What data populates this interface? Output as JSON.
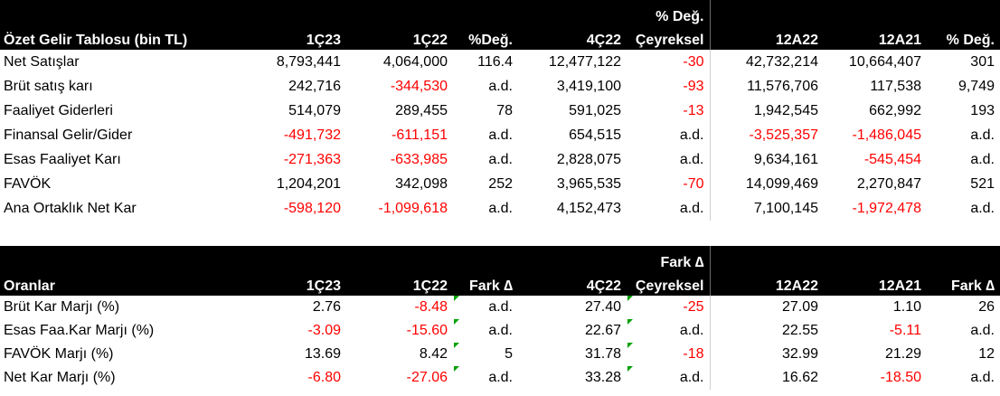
{
  "income": {
    "header_top": {
      "qoq": "% Değ."
    },
    "header": {
      "label": "Özet Gelir Tablosu (bin TL)",
      "c1": "1Ç23",
      "c2": "1Ç22",
      "c3": "%Değ.",
      "c4": "4Ç22",
      "c5": "Çeyreksel",
      "c6": "12A22",
      "c7": "12A21",
      "c8": "% Değ."
    },
    "rows": [
      {
        "label": "Net Satışlar",
        "values": [
          "8,793,441",
          "4,064,000",
          "116.4",
          "12,477,122",
          "-30",
          "42,732,214",
          "10,664,407",
          "301"
        ]
      },
      {
        "label": "Brüt satış karı",
        "values": [
          "242,716",
          "-344,530",
          "a.d.",
          "3,419,100",
          "-93",
          "11,576,706",
          "117,538",
          "9,749"
        ]
      },
      {
        "label": "Faaliyet Giderleri",
        "values": [
          "514,079",
          "289,455",
          "78",
          "591,025",
          "-13",
          "1,942,545",
          "662,992",
          "193"
        ]
      },
      {
        "label": "Finansal Gelir/Gider",
        "values": [
          "-491,732",
          "-611,151",
          "a.d.",
          "654,515",
          "a.d.",
          "-3,525,357",
          "-1,486,045",
          "a.d."
        ]
      },
      {
        "label": "Esas Faaliyet Karı",
        "values": [
          "-271,363",
          "-633,985",
          "a.d.",
          "2,828,075",
          "a.d.",
          "9,634,161",
          "-545,454",
          "a.d."
        ]
      },
      {
        "label": "FAVÖK",
        "values": [
          "1,204,201",
          "342,098",
          "252",
          "3,965,535",
          "-70",
          "14,099,469",
          "2,270,847",
          "521"
        ]
      },
      {
        "label": "Ana Ortaklık Net Kar",
        "values": [
          "-598,120",
          "-1,099,618",
          "a.d.",
          "4,152,473",
          "a.d.",
          "7,100,145",
          "-1,972,478",
          "a.d."
        ]
      }
    ]
  },
  "ratios": {
    "header_top": {
      "qoq": "Fark ∆"
    },
    "header": {
      "label": "Oranlar",
      "c1": "1Ç23",
      "c2": "1Ç22",
      "c3": "Fark ∆",
      "c4": "4Ç22",
      "c5": "Çeyreksel",
      "c6": "12A22",
      "c7": "12A21",
      "c8": "Fark ∆"
    },
    "rows": [
      {
        "label": "Brüt Kar Marjı (%)",
        "values": [
          "2.76",
          "-8.48",
          "a.d.",
          "27.40",
          "-25",
          "27.09",
          "1.10",
          "26"
        ]
      },
      {
        "label": "Esas Faa.Kar Marjı (%)",
        "values": [
          "-3.09",
          "-15.60",
          "a.d.",
          "22.67",
          "a.d.",
          "22.55",
          "-5.11",
          "a.d."
        ]
      },
      {
        "label": "FAVÖK Marjı (%)",
        "values": [
          "13.69",
          "8.42",
          "5",
          "31.78",
          "-18",
          "32.99",
          "21.29",
          "12"
        ]
      },
      {
        "label": "Net Kar Marjı (%)",
        "values": [
          "-6.80",
          "-27.06",
          "a.d.",
          "33.28",
          "a.d.",
          "16.62",
          "-18.50",
          "a.d."
        ]
      }
    ]
  },
  "colors": {
    "negative": "#ff0000",
    "header_bg": "#000000",
    "header_text": "#ffffff",
    "comment_marker": "#00a000"
  }
}
